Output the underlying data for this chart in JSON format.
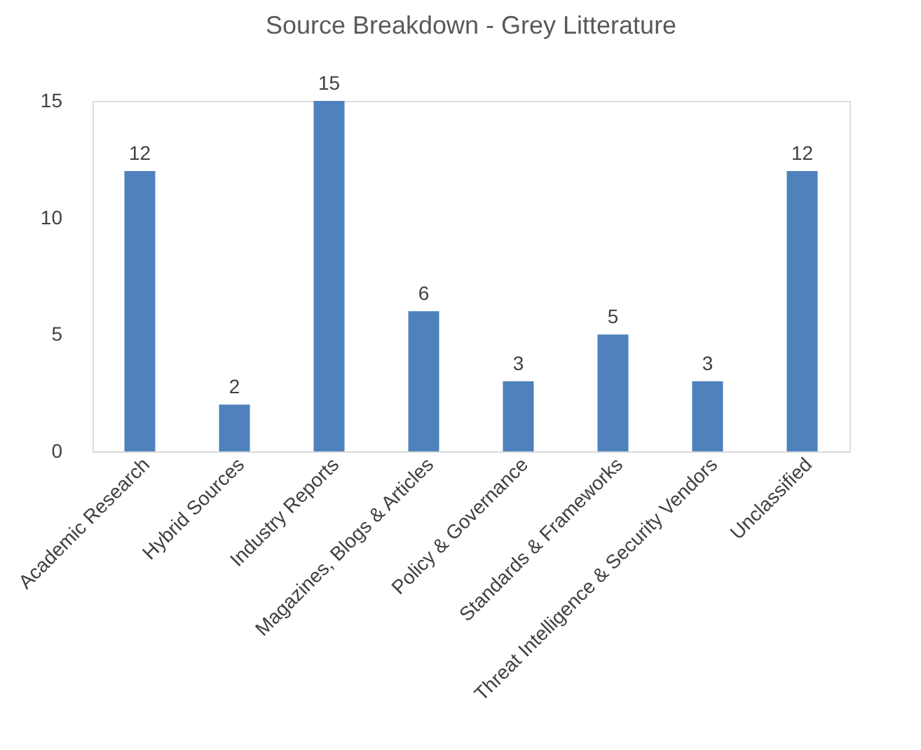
{
  "chart_data": {
    "type": "bar",
    "title": "Source Breakdown - Grey Litterature",
    "categories": [
      "Academic Research",
      "Hybrid Sources",
      "Industry Reports",
      "Magazines, Blogs & Articles",
      "Policy & Governance",
      "Standards & Frameworks",
      "Threat Intelligence & Security Vendors",
      "Unclassified"
    ],
    "values": [
      12,
      2,
      15,
      6,
      3,
      5,
      3,
      12
    ],
    "color": "#4f81bd",
    "ylim": [
      0,
      15
    ],
    "yticks": [
      0,
      5,
      10,
      15
    ],
    "data_labels": true
  }
}
